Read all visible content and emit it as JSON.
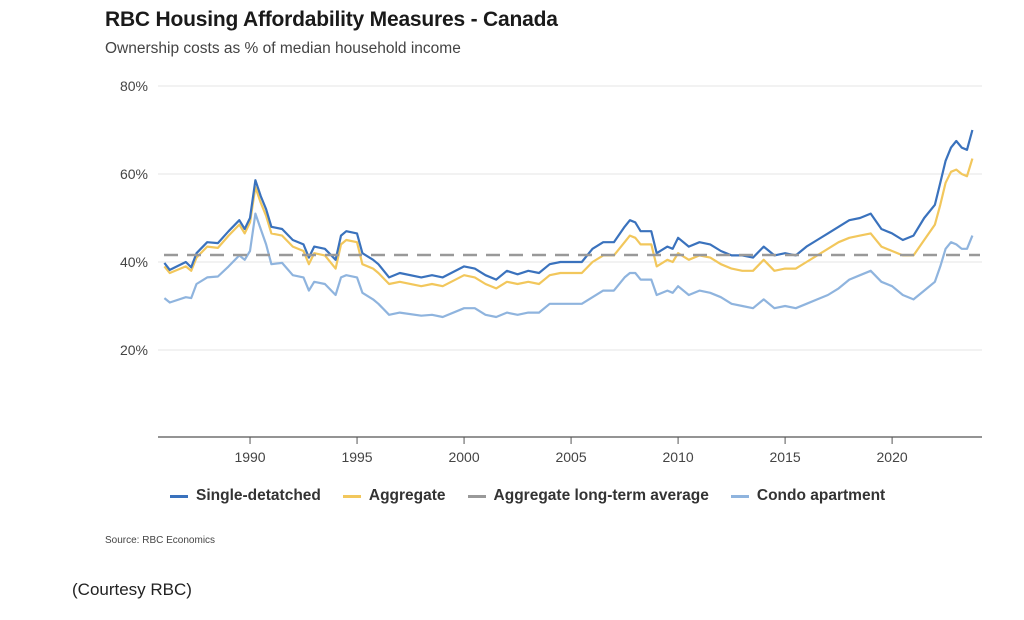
{
  "header": {
    "title": "RBC Housing Affordability Measures - Canada",
    "subtitle": "Ownership costs as % of median household income"
  },
  "footer": {
    "source": "Source: RBC Economics",
    "courtesy": "(Courtesy RBC)"
  },
  "colors": {
    "single_detached": "#3a72bd",
    "aggregate": "#f2c75c",
    "long_term_average": "#999999",
    "condo": "#8fb4de"
  },
  "chart_data": {
    "type": "line",
    "title": "RBC Housing Affordability Measures - Canada",
    "subtitle": "Ownership costs as % of median household income",
    "xlabel": "",
    "ylabel": "",
    "xlim": [
      1985.7,
      2024.2
    ],
    "ylim": [
      0,
      80
    ],
    "x_ticks": [
      1990,
      1995,
      2000,
      2005,
      2010,
      2015,
      2020
    ],
    "x_tick_labels": [
      "1990",
      "1995",
      "2000",
      "2005",
      "2010",
      "2015",
      "2020"
    ],
    "y_ticks": [
      20,
      40,
      60,
      80
    ],
    "y_tick_labels": [
      "20%",
      "40%",
      "60%",
      "80%"
    ],
    "grid": "horizontal",
    "legend_position": "bottom",
    "x": [
      1986.0,
      1986.25,
      1987.0,
      1987.25,
      1987.5,
      1988.0,
      1988.5,
      1989.0,
      1989.5,
      1989.75,
      1990.0,
      1990.25,
      1990.5,
      1990.75,
      1991.0,
      1991.5,
      1992.0,
      1992.5,
      1992.75,
      1993.0,
      1993.5,
      1994.0,
      1994.25,
      1994.5,
      1995.0,
      1995.25,
      1995.75,
      1996.0,
      1996.5,
      1997.0,
      1998.0,
      1998.5,
      1999.0,
      2000.0,
      2000.5,
      2001.0,
      2001.5,
      2002.0,
      2002.5,
      2003.0,
      2003.5,
      2004.0,
      2004.5,
      2005.0,
      2005.5,
      2006.0,
      2006.5,
      2007.0,
      2007.5,
      2007.75,
      2008.0,
      2008.25,
      2008.75,
      2009.0,
      2009.5,
      2009.75,
      2010.0,
      2010.5,
      2011.0,
      2011.5,
      2012.0,
      2012.5,
      2013.0,
      2013.5,
      2014.0,
      2014.5,
      2015.0,
      2015.5,
      2016.0,
      2016.5,
      2017.0,
      2017.5,
      2018.0,
      2018.5,
      2019.0,
      2019.5,
      2020.0,
      2020.5,
      2021.0,
      2021.5,
      2022.0,
      2022.25,
      2022.5,
      2022.75,
      2023.0,
      2023.25,
      2023.5,
      2023.75
    ],
    "series": [
      {
        "name": "Single-detatched",
        "style": "solid",
        "values": [
          39.8,
          38.2,
          40,
          38.8,
          42,
          44.5,
          44.3,
          47,
          49.5,
          47.5,
          50,
          58.6,
          55,
          52,
          48,
          47.5,
          45,
          44,
          41,
          43.5,
          43,
          40.5,
          46,
          47,
          46.5,
          42,
          40.5,
          39.5,
          36.5,
          37.5,
          36.5,
          37,
          36.5,
          39,
          38.5,
          37,
          36,
          38,
          37.2,
          38,
          37.5,
          39.5,
          40,
          40,
          40,
          43,
          44.5,
          44.5,
          48,
          49.5,
          49,
          47,
          47,
          42,
          43.5,
          43,
          45.5,
          43.5,
          44.5,
          44,
          42.5,
          41.5,
          41.5,
          41,
          43.5,
          41.5,
          42,
          41.5,
          43.5,
          45,
          46.5,
          48,
          49.5,
          50,
          51,
          47.5,
          46.5,
          45,
          46,
          50,
          53,
          58,
          63,
          66,
          67.5,
          66,
          65.5,
          70
        ]
      },
      {
        "name": "Aggregate",
        "style": "solid",
        "values": [
          39,
          37.5,
          39,
          38,
          41,
          43.5,
          43.2,
          46,
          48.5,
          46.5,
          49,
          57,
          53.5,
          50.5,
          46.5,
          46,
          43.5,
          42.5,
          39.5,
          42,
          41.5,
          38.5,
          44,
          45,
          44.5,
          39.5,
          38.5,
          37.5,
          35,
          35.5,
          34.5,
          35,
          34.5,
          37,
          36.5,
          35,
          34,
          35.5,
          35,
          35.5,
          35,
          37,
          37.5,
          37.5,
          37.5,
          40,
          41.5,
          41.5,
          44.5,
          46,
          45.5,
          44,
          44,
          39,
          40.5,
          40,
          42,
          40.5,
          41.5,
          41,
          39.5,
          38.5,
          38,
          38,
          40.5,
          38,
          38.5,
          38.5,
          40,
          41.5,
          43,
          44.5,
          45.5,
          46,
          46.5,
          43.5,
          42.5,
          41.5,
          41.5,
          45,
          48.5,
          53,
          58,
          60.5,
          61,
          60,
          59.5,
          63.5
        ]
      },
      {
        "name": "Aggregate long-term average",
        "style": "dashed",
        "values": [
          41.6,
          41.6
        ]
      },
      {
        "name": "Condo apartment",
        "style": "solid",
        "values": [
          31.8,
          30.8,
          32,
          31.8,
          35,
          36.5,
          36.7,
          39,
          41.5,
          40.5,
          42.5,
          51,
          47.5,
          44,
          39.5,
          39.8,
          37,
          36.5,
          33.5,
          35.5,
          35,
          32.5,
          36.5,
          37,
          36.5,
          33,
          31.5,
          30.5,
          28,
          28.5,
          27.8,
          28,
          27.5,
          29.5,
          29.5,
          28,
          27.5,
          28.5,
          28,
          28.5,
          28.5,
          30.5,
          30.5,
          30.5,
          30.5,
          32,
          33.5,
          33.5,
          36.5,
          37.5,
          37.5,
          36,
          36,
          32.5,
          33.5,
          33,
          34.5,
          32.5,
          33.5,
          33,
          32,
          30.5,
          30,
          29.5,
          31.5,
          29.5,
          30,
          29.5,
          30.5,
          31.5,
          32.5,
          34,
          36,
          37,
          38,
          35.5,
          34.5,
          32.5,
          31.5,
          33.5,
          35.5,
          39,
          43,
          44.5,
          44,
          43,
          43,
          46
        ]
      }
    ]
  },
  "legend": {
    "items": [
      {
        "label": "Single-detatched",
        "color": "#3a72bd"
      },
      {
        "label": "Aggregate",
        "color": "#f2c75c"
      },
      {
        "label": "Aggregate long-term average",
        "color": "#999999"
      },
      {
        "label": "Condo apartment",
        "color": "#8fb4de"
      }
    ]
  }
}
